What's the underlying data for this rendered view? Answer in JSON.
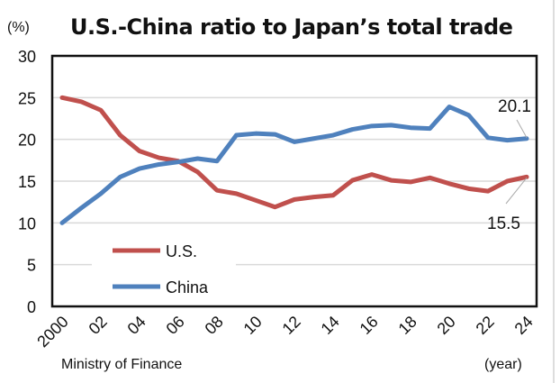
{
  "chart_data": {
    "type": "line",
    "title": "U.S.-China ratio to Japan’s total trade",
    "ylabel": "(%)",
    "xlabel": "(year)",
    "source": "Ministry of Finance",
    "ylim": [
      0,
      30
    ],
    "yticks": [
      "0",
      "5",
      "10",
      "15",
      "20",
      "25",
      "30"
    ],
    "xlim": [
      2000,
      2024
    ],
    "xtick_labels": [
      "2000",
      "02",
      "04",
      "06",
      "08",
      "10",
      "12",
      "14",
      "16",
      "18",
      "20",
      "22",
      "24"
    ],
    "grid": true,
    "legend_placement": "bottom-left",
    "x": [
      2000,
      2001,
      2002,
      2003,
      2004,
      2005,
      2006,
      2007,
      2008,
      2009,
      2010,
      2011,
      2012,
      2013,
      2014,
      2015,
      2016,
      2017,
      2018,
      2019,
      2020,
      2021,
      2022,
      2023,
      2024
    ],
    "series": [
      {
        "name": "U.S.",
        "color": "#c0504d",
        "values": [
          25.0,
          24.5,
          23.5,
          20.5,
          18.6,
          17.8,
          17.4,
          16.1,
          13.9,
          13.5,
          12.7,
          11.9,
          12.8,
          13.1,
          13.3,
          15.1,
          15.8,
          15.1,
          14.9,
          15.4,
          14.7,
          14.1,
          13.8,
          15.0,
          15.5
        ]
      },
      {
        "name": "China",
        "color": "#4f81bd",
        "values": [
          10.0,
          11.8,
          13.5,
          15.5,
          16.5,
          17.0,
          17.3,
          17.7,
          17.4,
          20.5,
          20.7,
          20.6,
          19.7,
          20.1,
          20.5,
          21.2,
          21.6,
          21.7,
          21.4,
          21.3,
          23.9,
          22.9,
          20.2,
          19.9,
          20.1
        ]
      }
    ],
    "annotations": [
      {
        "series": "China",
        "x": 2024,
        "text": "20.1"
      },
      {
        "series": "U.S.",
        "x": 2024,
        "text": "15.5"
      }
    ]
  }
}
